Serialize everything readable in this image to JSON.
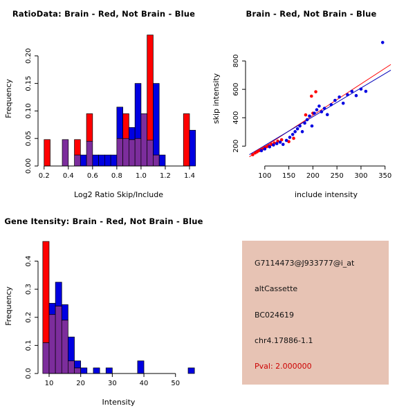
{
  "colors": {
    "red": "#ff0000",
    "blue": "#0000e1",
    "overlap": "#7c2d9c",
    "red_line": "#ff0000",
    "blue_line": "#0000b8",
    "info_bg": "#e7c3b4",
    "pval": "#cc0000",
    "axis": "#000000"
  },
  "chart_data": [
    {
      "id": "ratio_hist",
      "type": "histogram",
      "title": "RatioData: Brain - Red, Not Brain - Blue",
      "xlabel": "Log2 Ratio Skip/Include",
      "ylabel": "Frequency",
      "xlim": [
        0.15,
        1.48
      ],
      "ylim": [
        0,
        0.245
      ],
      "xticks": {
        "values": [
          0.2,
          0.4,
          0.6,
          0.8,
          1.0,
          1.2,
          1.4
        ],
        "labels": [
          "0.2",
          "0.4",
          "0.6",
          "0.8",
          "1.0",
          "1.2",
          "1.4"
        ]
      },
      "yticks": {
        "values": [
          0,
          0.05,
          0.1,
          0.15,
          0.2
        ],
        "labels": [
          "0.00",
          "0.05",
          "0.10",
          "0.15",
          "0.20"
        ]
      },
      "bin_width": 0.05,
      "bins": [
        {
          "x": 0.2,
          "red": 0.048,
          "blue": 0
        },
        {
          "x": 0.35,
          "red": 0.048,
          "blue": 0.048
        },
        {
          "x": 0.45,
          "red": 0.048,
          "blue": 0.02
        },
        {
          "x": 0.5,
          "red": 0,
          "blue": 0.02
        },
        {
          "x": 0.55,
          "red": 0.095,
          "blue": 0.045
        },
        {
          "x": 0.6,
          "red": 0,
          "blue": 0.02
        },
        {
          "x": 0.65,
          "red": 0,
          "blue": 0.02
        },
        {
          "x": 0.7,
          "red": 0,
          "blue": 0.02
        },
        {
          "x": 0.75,
          "red": 0,
          "blue": 0.02
        },
        {
          "x": 0.8,
          "red": 0.05,
          "blue": 0.107
        },
        {
          "x": 0.85,
          "red": 0.095,
          "blue": 0.05
        },
        {
          "x": 0.9,
          "red": 0.048,
          "blue": 0.07
        },
        {
          "x": 0.95,
          "red": 0.05,
          "blue": 0.15
        },
        {
          "x": 1.0,
          "red": 0.095,
          "blue": 0.095
        },
        {
          "x": 1.05,
          "red": 0.238,
          "blue": 0.047
        },
        {
          "x": 1.1,
          "red": 0.02,
          "blue": 0.15
        },
        {
          "x": 1.15,
          "red": 0,
          "blue": 0.02
        },
        {
          "x": 1.35,
          "red": 0.095,
          "blue": 0
        },
        {
          "x": 1.4,
          "red": 0,
          "blue": 0.065
        }
      ]
    },
    {
      "id": "scatter",
      "type": "scatter",
      "title": "Brain - Red, Not Brain - Blue",
      "xlabel": "include intensity",
      "ylabel": "skip intensity",
      "xlim": [
        60,
        395
      ],
      "ylim": [
        60,
        1010
      ],
      "xticks": {
        "values": [
          100,
          150,
          200,
          250,
          300,
          350
        ],
        "labels": [
          "100",
          "150",
          "200",
          "250",
          "300",
          "350"
        ]
      },
      "yticks": {
        "values": [
          200,
          400,
          600,
          800
        ],
        "labels": [
          "200",
          "400",
          "600",
          "800"
        ]
      },
      "series": [
        {
          "name": "brain",
          "color": "red",
          "points": [
            [
              75,
              140
            ],
            [
              80,
              152
            ],
            [
              84,
              160
            ],
            [
              88,
              168
            ],
            [
              92,
              175
            ],
            [
              96,
              182
            ],
            [
              100,
              190
            ],
            [
              104,
              196
            ],
            [
              108,
              204
            ],
            [
              114,
              212
            ],
            [
              120,
              222
            ],
            [
              127,
              235
            ],
            [
              135,
              245
            ],
            [
              150,
              232
            ],
            [
              160,
              255
            ],
            [
              185,
              420
            ],
            [
              200,
              432
            ],
            [
              197,
              552
            ],
            [
              206,
              583
            ]
          ]
        },
        {
          "name": "not-brain",
          "color": "blue",
          "points": [
            [
              93,
              168
            ],
            [
              100,
              180
            ],
            [
              110,
              195
            ],
            [
              118,
              208
            ],
            [
              125,
              218
            ],
            [
              132,
              228
            ],
            [
              138,
              212
            ],
            [
              145,
              240
            ],
            [
              152,
              262
            ],
            [
              158,
              282
            ],
            [
              163,
              302
            ],
            [
              168,
              322
            ],
            [
              173,
              342
            ],
            [
              178,
              302
            ],
            [
              183,
              362
            ],
            [
              188,
              386
            ],
            [
              193,
              412
            ],
            [
              198,
              342
            ],
            [
              203,
              432
            ],
            [
              208,
              456
            ],
            [
              213,
              482
            ],
            [
              218,
              442
            ],
            [
              224,
              466
            ],
            [
              230,
              422
            ],
            [
              238,
              492
            ],
            [
              246,
              522
            ],
            [
              255,
              546
            ],
            [
              263,
              502
            ],
            [
              272,
              562
            ],
            [
              281,
              586
            ],
            [
              290,
              556
            ],
            [
              300,
              602
            ],
            [
              310,
              586
            ],
            [
              345,
              930
            ]
          ]
        }
      ],
      "lines": [
        {
          "name": "brain-fit-line",
          "color": "red_line",
          "x1": 68,
          "y1": 125,
          "x2": 362,
          "y2": 775
        },
        {
          "name": "not-brain-fit-line",
          "color": "blue_line",
          "x1": 68,
          "y1": 140,
          "x2": 362,
          "y2": 735
        }
      ]
    },
    {
      "id": "gene_hist",
      "type": "histogram",
      "title": "Gene Itensity: Brain - Red, Not Brain - Blue",
      "xlabel": "Intensity",
      "ylabel": "Frequency",
      "xlim": [
        6.5,
        57.5
      ],
      "ylim": [
        0,
        0.48
      ],
      "xticks": {
        "values": [
          10,
          20,
          30,
          40,
          50
        ],
        "labels": [
          "10",
          "20",
          "30",
          "40",
          "50"
        ]
      },
      "yticks": {
        "values": [
          0,
          0.1,
          0.2,
          0.3,
          0.4
        ],
        "labels": [
          "0.0",
          "0.1",
          "0.2",
          "0.3",
          "0.4"
        ]
      },
      "bin_width": 2,
      "bins": [
        {
          "x": 8,
          "red": 0.47,
          "blue": 0.11
        },
        {
          "x": 10,
          "red": 0.21,
          "blue": 0.25
        },
        {
          "x": 12,
          "red": 0.24,
          "blue": 0.325
        },
        {
          "x": 14,
          "red": 0.19,
          "blue": 0.245
        },
        {
          "x": 16,
          "red": 0.045,
          "blue": 0.13
        },
        {
          "x": 18,
          "red": 0.02,
          "blue": 0.045
        },
        {
          "x": 20,
          "red": 0,
          "blue": 0.02
        },
        {
          "x": 24,
          "red": 0,
          "blue": 0.02
        },
        {
          "x": 28,
          "red": 0,
          "blue": 0.02
        },
        {
          "x": 38,
          "red": 0,
          "blue": 0.045
        },
        {
          "x": 54,
          "red": 0,
          "blue": 0.02
        }
      ]
    }
  ],
  "info_panel": {
    "probe_id": "G7114473@J933777@i_at",
    "event_type": "altCassette",
    "accession": "BC024619",
    "location": "chr4.17886-1.1",
    "pval": "Pval: 2.000000"
  }
}
